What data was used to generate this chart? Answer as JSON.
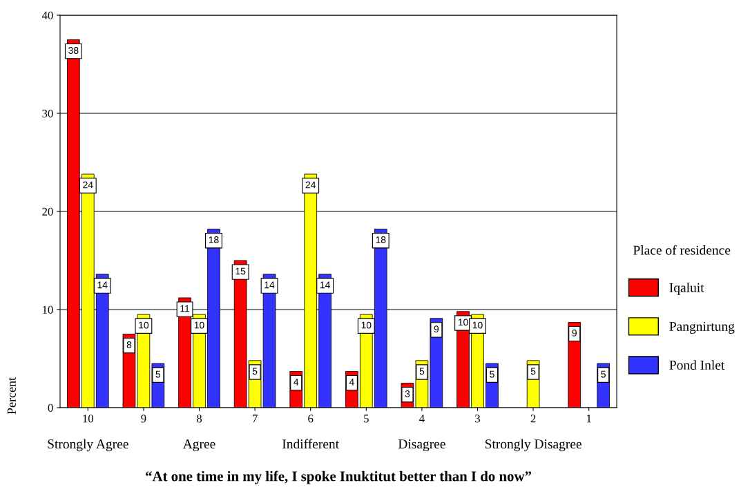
{
  "chart_data": {
    "type": "bar",
    "xlabel": "“At one time in my life, I spoke Inuktitut better than I do now”",
    "ylabel": "Percent",
    "legend_title": "Place of residence",
    "categories": [
      "10",
      "9",
      "8",
      "7",
      "6",
      "5",
      "4",
      "3",
      "2",
      "1"
    ],
    "series": [
      {
        "name": "Iqaluit",
        "color": "#ff0000",
        "values": [
          37.5,
          7.5,
          11.2,
          15,
          3.7,
          3.7,
          2.5,
          9.8,
          null,
          8.7
        ],
        "value_labels": [
          "38",
          "8",
          "11",
          "15",
          "4",
          "4",
          "3",
          "10",
          null,
          "9"
        ]
      },
      {
        "name": "Pangnirtung",
        "color": "#ffff00",
        "values": [
          23.8,
          9.5,
          9.5,
          4.8,
          23.8,
          9.5,
          4.8,
          9.5,
          4.8,
          null
        ],
        "value_labels": [
          "24",
          "10",
          "10",
          "5",
          "24",
          "10",
          "5",
          "10",
          "5",
          null
        ]
      },
      {
        "name": "Pond Inlet",
        "color": "#3333ff",
        "values": [
          13.6,
          4.5,
          18.2,
          13.6,
          13.6,
          18.2,
          9.1,
          4.5,
          null,
          4.5
        ],
        "value_labels": [
          "14",
          "5",
          "18",
          "14",
          "14",
          "18",
          "9",
          "5",
          null,
          "5"
        ]
      }
    ],
    "annotations": [
      "Strongly Agree",
      "Agree",
      "Indifferent",
      "Disagree",
      "Strongly Disagree"
    ],
    "ylim": [
      0,
      40
    ],
    "yticks": [
      0,
      10,
      20,
      30,
      40
    ],
    "grid": "y",
    "legend": "right"
  }
}
